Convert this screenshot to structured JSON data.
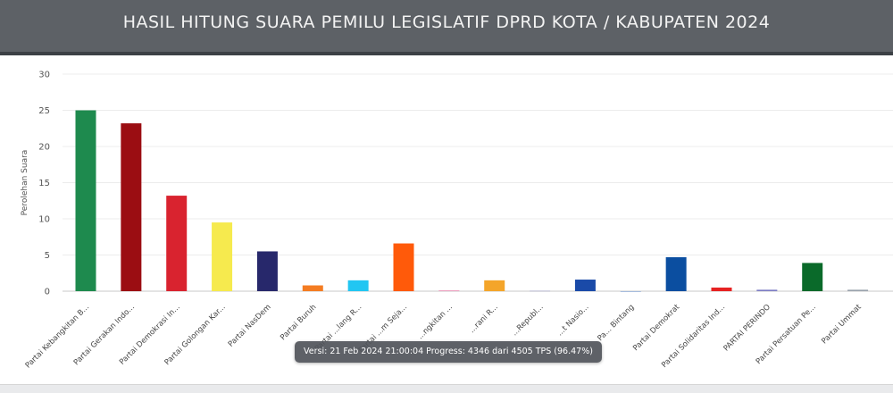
{
  "header": {
    "title": "HASIL HITUNG SUARA PEMILU LEGISLATIF DPRD KOTA / KABUPATEN 2024"
  },
  "tooltip": {
    "text": "Versi: 21 Feb 2024 21:00:04 Progress: 4346 dari 4505 TPS (96.47%)"
  },
  "chart_data": {
    "type": "bar",
    "ylabel": "Perolehan Suara",
    "ylim": [
      0,
      30
    ],
    "yticks": [
      0,
      5,
      10,
      15,
      20,
      25,
      30
    ],
    "grid": true,
    "categories": [
      "Partai Kebangkitan B...",
      "Partai Gerakan Indo...",
      "Partai Demokrasi In...",
      "Partai Golongan Kar...",
      "Partai NasDem",
      "Partai Buruh",
      "Partai ...lang R...",
      "Partai ...m Seja...",
      "...ngkitan ...",
      "...rani R...",
      "...Republ...",
      "...t Nasio...",
      "Pa... Bintang",
      "Partai Demokrat",
      "Partai Solidaritas Ind...",
      "PARTAI PERINDO",
      "Partai Persatuan Pe...",
      "Partai Ummat"
    ],
    "values": [
      25.0,
      23.2,
      13.2,
      9.5,
      5.5,
      0.8,
      1.5,
      6.6,
      0.1,
      1.5,
      0.05,
      1.6,
      0.0,
      4.7,
      0.5,
      0.2,
      3.9,
      0.2
    ],
    "colors": [
      "#1e8a4e",
      "#9b0d12",
      "#d9232f",
      "#f6ea4e",
      "#27286b",
      "#f47c22",
      "#22c6f2",
      "#ff5a0a",
      "#e88ab0",
      "#f4a52a",
      "#9c9cc4",
      "#1a4aa8",
      "#6c8fc6",
      "#0b4ea0",
      "#e62222",
      "#7c7cc4",
      "#0a6a2a",
      "#9aa2ad"
    ]
  }
}
